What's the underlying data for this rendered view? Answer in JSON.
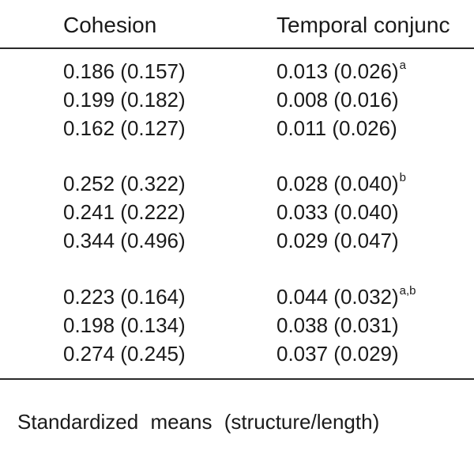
{
  "header": {
    "col1": "Cohesion",
    "col2": "Temporal conjunc"
  },
  "rows": [
    {
      "cohesion": "0.186 (0.157)",
      "temporal": "0.013 (0.026)",
      "sup": "a"
    },
    {
      "cohesion": "0.199 (0.182)",
      "temporal": "0.008 (0.016)",
      "sup": ""
    },
    {
      "cohesion": "0.162 (0.127)",
      "temporal": "0.011 (0.026)",
      "sup": ""
    },
    {
      "cohesion": "0.252 (0.322)",
      "temporal": "0.028 (0.040)",
      "sup": "b"
    },
    {
      "cohesion": "0.241 (0.222)",
      "temporal": "0.033 (0.040)",
      "sup": ""
    },
    {
      "cohesion": "0.344 (0.496)",
      "temporal": "0.029 (0.047)",
      "sup": ""
    },
    {
      "cohesion": "0.223 (0.164)",
      "temporal": "0.044 (0.032)",
      "sup": "a,b"
    },
    {
      "cohesion": "0.198 (0.134)",
      "temporal": "0.038 (0.031)",
      "sup": ""
    },
    {
      "cohesion": "0.274 (0.245)",
      "temporal": "0.037 (0.029)",
      "sup": ""
    }
  ],
  "footer": "Standardized means (structure/length)"
}
